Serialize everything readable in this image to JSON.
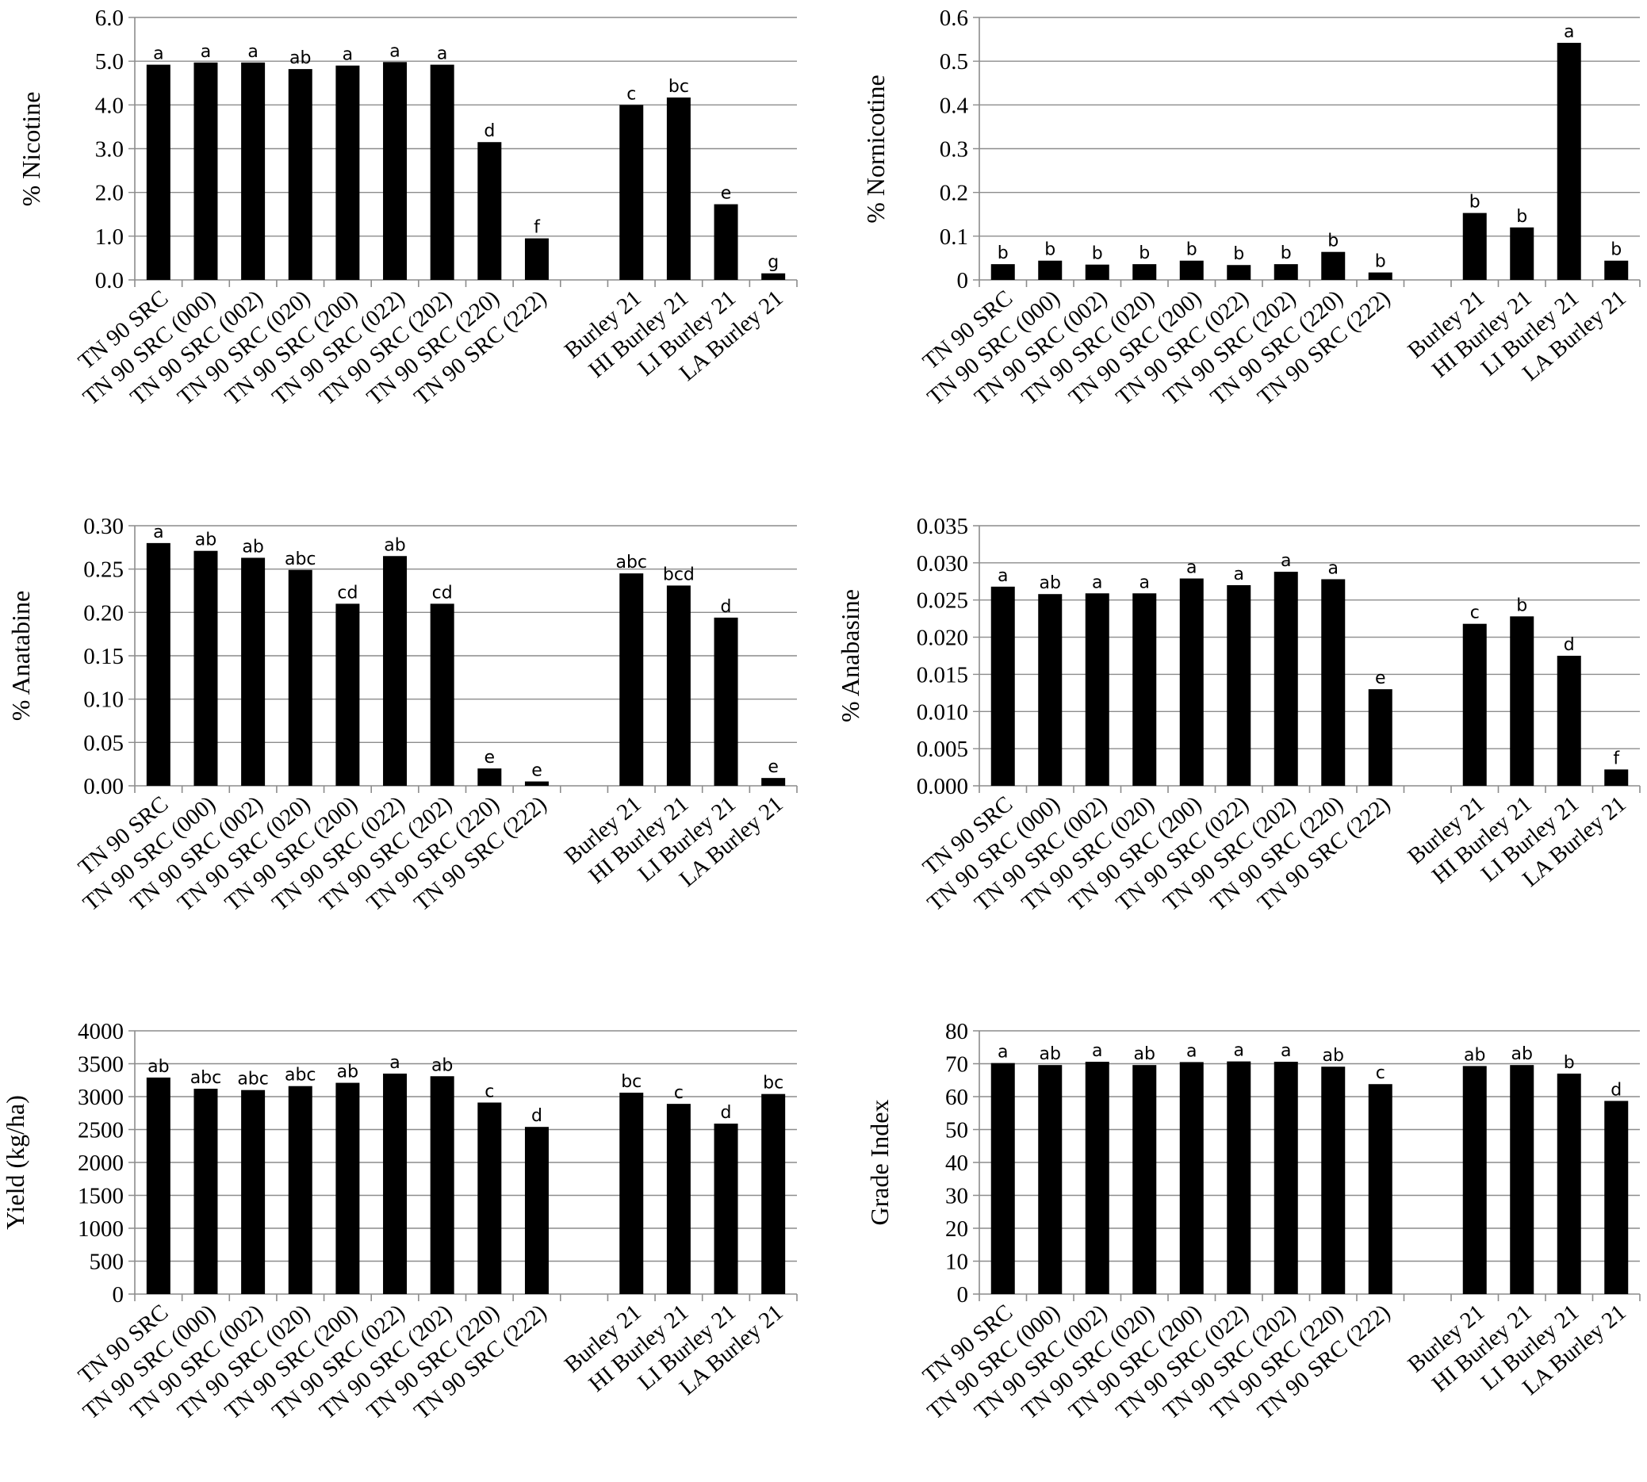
{
  "chart_data": [
    {
      "type": "bar",
      "ylabel": "% Nicotine",
      "ylim": [
        0,
        6
      ],
      "yticks": [
        "0.0",
        "1.0",
        "2.0",
        "3.0",
        "4.0",
        "5.0",
        "6.0"
      ],
      "grid": true,
      "categories": [
        "TN 90 SRC",
        "TN 90 SRC (000)",
        "TN 90 SRC (002)",
        "TN 90 SRC (020)",
        "TN 90 SRC (200)",
        "TN 90 SRC (022)",
        "TN 90 SRC (202)",
        "TN 90 SRC (220)",
        "TN 90 SRC (222)",
        "",
        "Burley 21",
        "HI Burley 21",
        "LI Burley 21",
        "LA Burley 21"
      ],
      "values": [
        4.92,
        4.97,
        4.97,
        4.82,
        4.9,
        4.98,
        4.92,
        3.15,
        0.95,
        null,
        4.0,
        4.17,
        1.73,
        0.15
      ],
      "sig_labels": [
        "a",
        "a",
        "a",
        "ab",
        "a",
        "a",
        "a",
        "d",
        "f",
        "",
        "c",
        "bc",
        "e",
        "g"
      ]
    },
    {
      "type": "bar",
      "ylabel": "% Nornicotine",
      "ylim": [
        0,
        0.6
      ],
      "yticks": [
        "0",
        "0.1",
        "0.2",
        "0.3",
        "0.4",
        "0.5",
        "0.6"
      ],
      "grid": true,
      "categories": [
        "TN 90 SRC",
        "TN 90 SRC (000)",
        "TN 90 SRC (002)",
        "TN 90 SRC (020)",
        "TN 90 SRC (200)",
        "TN 90 SRC (022)",
        "TN 90 SRC (202)",
        "TN 90 SRC (220)",
        "TN 90 SRC (222)",
        "",
        "Burley 21",
        "HI Burley 21",
        "LI Burley 21",
        "LA Burley 21"
      ],
      "values": [
        0.036,
        0.044,
        0.035,
        0.036,
        0.044,
        0.034,
        0.036,
        0.064,
        0.017,
        null,
        0.153,
        0.12,
        0.542,
        0.044
      ],
      "sig_labels": [
        "b",
        "b",
        "b",
        "b",
        "b",
        "b",
        "b",
        "b",
        "b",
        "",
        "b",
        "b",
        "a",
        "b"
      ]
    },
    {
      "type": "bar",
      "ylabel": "% Anatabine",
      "ylim": [
        0,
        0.3
      ],
      "yticks": [
        "0.00",
        "0.05",
        "0.10",
        "0.15",
        "0.20",
        "0.25",
        "0.30"
      ],
      "grid": true,
      "categories": [
        "TN 90 SRC",
        "TN 90 SRC (000)",
        "TN 90 SRC (002)",
        "TN 90 SRC (020)",
        "TN 90 SRC (200)",
        "TN 90 SRC (022)",
        "TN 90 SRC (202)",
        "TN 90 SRC (220)",
        "TN 90 SRC (222)",
        "",
        "Burley 21",
        "HI Burley 21",
        "LI Burley 21",
        "LA Burley 21"
      ],
      "values": [
        0.28,
        0.271,
        0.263,
        0.249,
        0.21,
        0.265,
        0.21,
        0.02,
        0.005,
        null,
        0.245,
        0.231,
        0.194,
        0.009
      ],
      "sig_labels": [
        "a",
        "ab",
        "ab",
        "abc",
        "cd",
        "ab",
        "cd",
        "e",
        "e",
        "",
        "abc",
        "bcd",
        "d",
        "e"
      ]
    },
    {
      "type": "bar",
      "ylabel": "% Anabasine",
      "ylim": [
        0,
        0.035
      ],
      "yticks": [
        "0.000",
        "0.005",
        "0.010",
        "0.015",
        "0.020",
        "0.025",
        "0.030",
        "0.035"
      ],
      "grid": true,
      "categories": [
        "TN 90 SRC",
        "TN 90 SRC (000)",
        "TN 90 SRC (002)",
        "TN 90 SRC (020)",
        "TN 90 SRC (200)",
        "TN 90 SRC (022)",
        "TN 90 SRC (202)",
        "TN 90 SRC (220)",
        "TN 90 SRC (222)",
        "",
        "Burley 21",
        "HI Burley 21",
        "LI Burley 21",
        "LA Burley 21"
      ],
      "values": [
        0.0268,
        0.0258,
        0.0259,
        0.0259,
        0.0279,
        0.027,
        0.0288,
        0.0278,
        0.013,
        null,
        0.0218,
        0.0228,
        0.0175,
        0.0022
      ],
      "sig_labels": [
        "a",
        "ab",
        "a",
        "a",
        "a",
        "a",
        "a",
        "a",
        "e",
        "",
        "c",
        "b",
        "d",
        "f"
      ]
    },
    {
      "type": "bar",
      "ylabel": "Yield (kg/ha)",
      "ylim": [
        0,
        4000
      ],
      "yticks": [
        "0",
        "500",
        "1000",
        "1500",
        "2000",
        "2500",
        "3000",
        "3500",
        "4000"
      ],
      "grid": true,
      "categories": [
        "TN 90 SRC",
        "TN 90 SRC (000)",
        "TN 90 SRC (002)",
        "TN 90 SRC (020)",
        "TN 90 SRC (200)",
        "TN 90 SRC (022)",
        "TN 90 SRC (202)",
        "TN 90 SRC (220)",
        "TN 90 SRC (222)",
        "",
        "Burley 21",
        "HI Burley 21",
        "LI Burley 21",
        "LA Burley 21"
      ],
      "values": [
        3290,
        3120,
        3100,
        3160,
        3210,
        3350,
        3310,
        2910,
        2540,
        null,
        3060,
        2890,
        2590,
        3040
      ],
      "sig_labels": [
        "ab",
        "abc",
        "abc",
        "abc",
        "ab",
        "a",
        "ab",
        "c",
        "d",
        "",
        "bc",
        "c",
        "d",
        "bc"
      ]
    },
    {
      "type": "bar",
      "ylabel": "Grade Index",
      "ylim": [
        0,
        80
      ],
      "yticks": [
        "0",
        "10",
        "20",
        "30",
        "40",
        "50",
        "60",
        "70",
        "80"
      ],
      "grid": true,
      "categories": [
        "TN 90 SRC",
        "TN 90 SRC (000)",
        "TN 90 SRC (002)",
        "TN 90 SRC (020)",
        "TN 90 SRC (200)",
        "TN 90 SRC (022)",
        "TN 90 SRC (202)",
        "TN 90 SRC (220)",
        "TN 90 SRC (222)",
        "",
        "Burley 21",
        "HI Burley 21",
        "LI Burley 21",
        "LA Burley 21"
      ],
      "values": [
        70.2,
        69.6,
        70.6,
        69.6,
        70.5,
        70.7,
        70.6,
        69.1,
        63.8,
        null,
        69.3,
        69.6,
        67.0,
        58.7
      ],
      "sig_labels": [
        "a",
        "ab",
        "a",
        "ab",
        "a",
        "a",
        "a",
        "ab",
        "c",
        "",
        "ab",
        "ab",
        "b",
        "d"
      ]
    }
  ]
}
